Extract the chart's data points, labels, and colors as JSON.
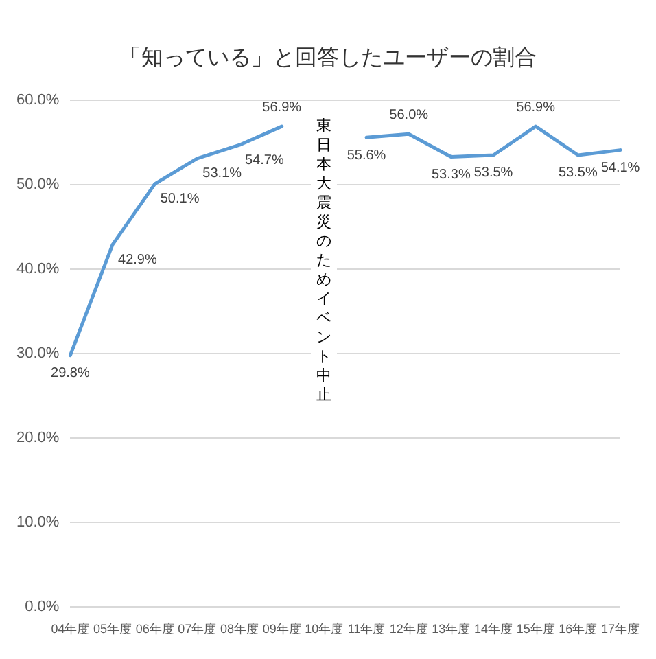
{
  "chart_data": {
    "type": "line",
    "title": "「知っている」と回答したユーザーの割合",
    "categories": [
      "04年度",
      "05年度",
      "06年度",
      "07年度",
      "08年度",
      "09年度",
      "10年度",
      "11年度",
      "12年度",
      "13年度",
      "14年度",
      "15年度",
      "16年度",
      "17年度"
    ],
    "series": [
      {
        "color": "#5b9bd5",
        "values": [
          29.8,
          42.9,
          50.1,
          53.1,
          54.7,
          56.9,
          null,
          55.6,
          56.0,
          53.3,
          53.5,
          56.9,
          53.5,
          54.1
        ],
        "value_labels": [
          "29.8%",
          "42.9%",
          "50.1%",
          "53.1%",
          "54.7%",
          "56.9%",
          null,
          "55.6%",
          "56.0%",
          "53.3%",
          "53.5%",
          "56.9%",
          "53.5%",
          "54.1%"
        ]
      }
    ],
    "ylim": [
      0,
      60
    ],
    "yticks": [
      {
        "value": 0,
        "label": "0.0%"
      },
      {
        "value": 10,
        "label": "10.0%"
      },
      {
        "value": 20,
        "label": "20.0%"
      },
      {
        "value": 30,
        "label": "30.0%"
      },
      {
        "value": 40,
        "label": "40.0%"
      },
      {
        "value": 50,
        "label": "50.0%"
      },
      {
        "value": 60,
        "label": "60.0%"
      }
    ],
    "grid": "y",
    "legend": false,
    "marker": "none",
    "line_style": "solid",
    "annotations": [
      "東日本大震災のためイベント中止"
    ]
  }
}
